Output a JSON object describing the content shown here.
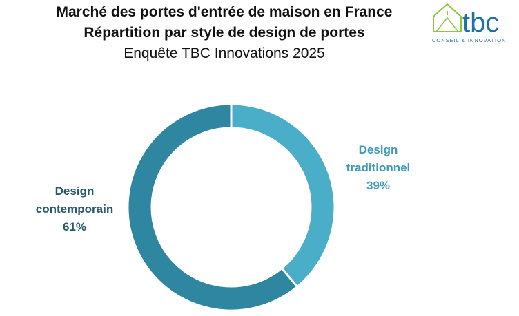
{
  "header": {
    "title_line1": "Marché des portes d'entrée de maison en France",
    "title_line2": "Répartition par style de design de portes",
    "subtitle": "Enquête TBC Innovations 2025"
  },
  "logo": {
    "text": "tbc",
    "tagline": "CONSEIL & INNOVATION",
    "colors": {
      "house": "#8DC63F",
      "text": "#1F6FA8"
    }
  },
  "chart_data": {
    "type": "pie",
    "variant": "donut",
    "title": "Marché des portes d'entrée de maison en France",
    "subtitle": "Répartition par style de design de portes",
    "slices": [
      {
        "name_line1": "Design",
        "name_line2": "traditionnel",
        "value": 39,
        "label": "39%",
        "color": "#4BAEC8",
        "label_color": "#3E9BB7"
      },
      {
        "name_line1": "Design",
        "name_line2": "contemporain",
        "value": 61,
        "label": "61%",
        "color": "#2E86A0",
        "label_color": "#26596B"
      }
    ],
    "start_angle_deg": 0,
    "direction": "clockwise",
    "legend": "none"
  }
}
